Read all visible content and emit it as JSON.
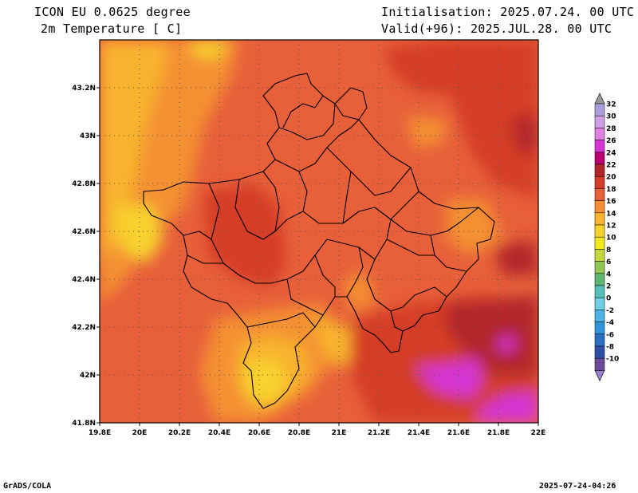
{
  "header": {
    "model": "ICON EU 0.0625 degree",
    "variable": "2m Temperature [ C]",
    "init": "Initialisation: 2025.07.24. 00 UTC",
    "valid": "Valid(+96): 2025.JUL.28. 00 UTC"
  },
  "map": {
    "lon_range": [
      19.8,
      22.0
    ],
    "lat_range": [
      41.8,
      43.4
    ],
    "lon_ticks": [
      {
        "v": 19.8,
        "label": "19.8E"
      },
      {
        "v": 20.0,
        "label": "20E"
      },
      {
        "v": 20.2,
        "label": "20.2E"
      },
      {
        "v": 20.4,
        "label": "20.4E"
      },
      {
        "v": 20.6,
        "label": "20.6E"
      },
      {
        "v": 20.8,
        "label": "20.8E"
      },
      {
        "v": 21.0,
        "label": "21E"
      },
      {
        "v": 21.2,
        "label": "21.2E"
      },
      {
        "v": 21.4,
        "label": "21.4E"
      },
      {
        "v": 21.6,
        "label": "21.6E"
      },
      {
        "v": 21.8,
        "label": "21.8E"
      },
      {
        "v": 22.0,
        "label": "22E"
      }
    ],
    "lat_ticks": [
      {
        "v": 41.8,
        "label": "41.8N"
      },
      {
        "v": 42.0,
        "label": "42N"
      },
      {
        "v": 42.2,
        "label": "42.2N"
      },
      {
        "v": 42.4,
        "label": "42.4N"
      },
      {
        "v": 42.6,
        "label": "42.6N"
      },
      {
        "v": 42.8,
        "label": "42.8N"
      },
      {
        "v": 43.0,
        "label": "43N"
      },
      {
        "v": 43.2,
        "label": "43.2N"
      }
    ],
    "grid": true
  },
  "colorbar": {
    "labels": [
      "32",
      "30",
      "28",
      "26",
      "24",
      "22",
      "20",
      "18",
      "16",
      "14",
      "12",
      "10",
      "8",
      "6",
      "4",
      "2",
      "0",
      "-2",
      "-4",
      "-6",
      "-8",
      "-10"
    ],
    "colors": [
      "#ac9fd9",
      "#cd9fe7",
      "#e17fe2",
      "#d535d3",
      "#b8016f",
      "#b3252b",
      "#d53d28",
      "#e8603a",
      "#f49033",
      "#f8b32f",
      "#f8d22d",
      "#f4e91f",
      "#c6d73e",
      "#93c553",
      "#5db772",
      "#54c0b8",
      "#70cfe4",
      "#4eb3e4",
      "#2d95d8",
      "#2a6fc2",
      "#2f4ea6",
      "#6d4a9e"
    ],
    "top_color": "#999999",
    "bottom_color": "#9a7fd0"
  },
  "footer": {
    "left": "GrADS/COLA",
    "right": "2025-07-24-04:26"
  }
}
